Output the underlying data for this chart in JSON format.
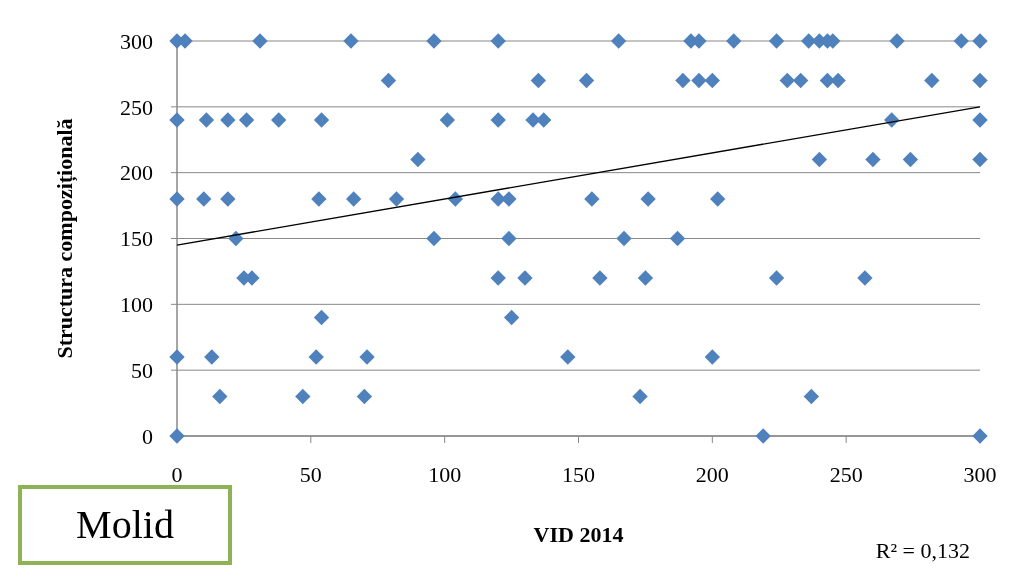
{
  "chart_data": {
    "type": "scatter",
    "title": "Molid",
    "xlabel": "VID 2014",
    "ylabel": "Structura compozițională",
    "annotations": [
      "R² = 0,132"
    ],
    "xlim": [
      0,
      300
    ],
    "xticks": [
      0,
      50,
      100,
      150,
      200,
      250,
      300
    ],
    "ylim": [
      0,
      300
    ],
    "yticks": [
      0,
      50,
      100,
      150,
      200,
      250,
      300
    ],
    "grid": "y",
    "marker": "diamond",
    "series": [
      {
        "color": "#4f81bd",
        "x": [
          0,
          3,
          31,
          65,
          96,
          120,
          165,
          192,
          195,
          208,
          224,
          236,
          240,
          243,
          245,
          269,
          293,
          300,
          79,
          135,
          153,
          189,
          195,
          200,
          228,
          233,
          243,
          247,
          282,
          300,
          0,
          11,
          19,
          26,
          38,
          54,
          101,
          120,
          133,
          137,
          267,
          300,
          90,
          240,
          260,
          274,
          300,
          0,
          10,
          19,
          53,
          66,
          82,
          104,
          120,
          124,
          155,
          176,
          202,
          22,
          96,
          124,
          167,
          187,
          25,
          28,
          120,
          130,
          158,
          175,
          224,
          257,
          54,
          125,
          0,
          13,
          52,
          71,
          146,
          200,
          16,
          47,
          70,
          173,
          237,
          0,
          219,
          300
        ],
        "values": [
          300,
          300,
          300,
          300,
          300,
          300,
          300,
          300,
          300,
          300,
          300,
          300,
          300,
          300,
          300,
          300,
          300,
          300,
          270,
          270,
          270,
          270,
          270,
          270,
          270,
          270,
          270,
          270,
          270,
          270,
          240,
          240,
          240,
          240,
          240,
          240,
          240,
          240,
          240,
          240,
          240,
          240,
          210,
          210,
          210,
          210,
          210,
          180,
          180,
          180,
          180,
          180,
          180,
          180,
          180,
          180,
          180,
          180,
          180,
          150,
          150,
          150,
          150,
          150,
          120,
          120,
          120,
          120,
          120,
          120,
          120,
          120,
          90,
          90,
          60,
          60,
          60,
          60,
          60,
          60,
          30,
          30,
          30,
          30,
          30,
          0,
          0,
          0
        ]
      },
      {
        "type": "line",
        "color": "#000000",
        "x": [
          0,
          300
        ],
        "values": [
          145,
          250
        ],
        "marker": "none"
      }
    ]
  }
}
